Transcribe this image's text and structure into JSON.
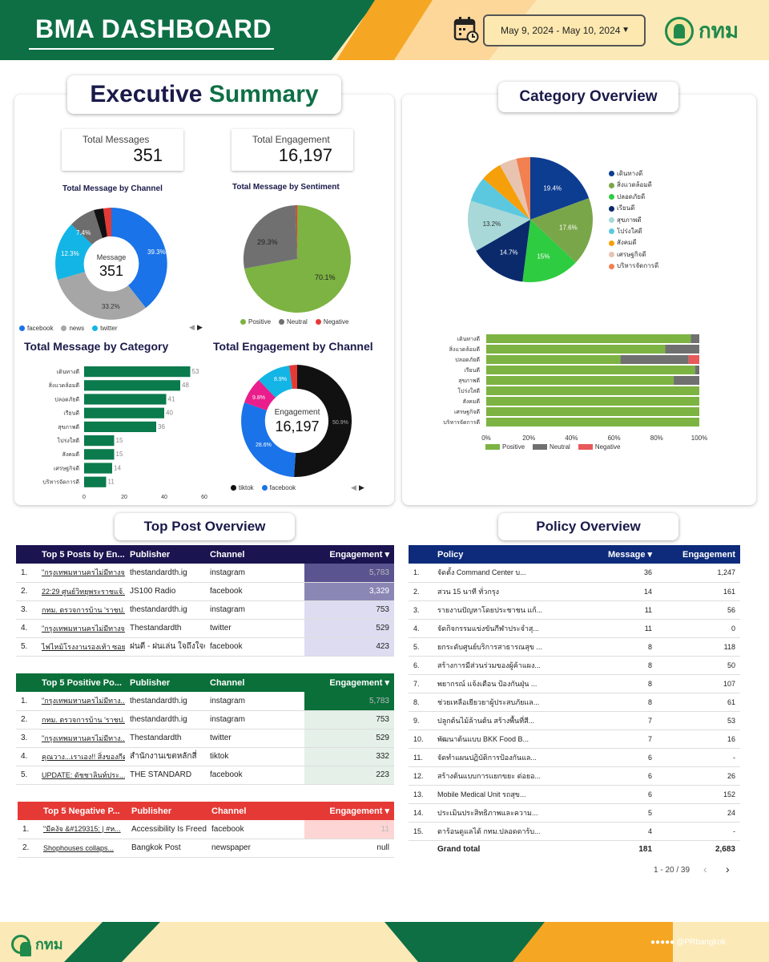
{
  "header": {
    "title": "BMA DASHBOARD",
    "date_range": "May 9, 2024 - May 10, 2024",
    "logo_text": "กทม"
  },
  "exec": {
    "title_a": "Executive",
    "title_b": "Summary",
    "kpi1_label": "Total Messages",
    "kpi1_value": "351",
    "kpi2_label": "Total Engagement",
    "kpi2_value": "16,197",
    "chan_title": "Total Message by Channel",
    "chan_center_label": "Message",
    "chan_center_value": "351",
    "chan_pcts": [
      "39.3%",
      "33.2%",
      "12.3%",
      "7.4%"
    ],
    "chan_legend": [
      "facebook",
      "news",
      "twitter"
    ],
    "sent_title": "Total Message by Sentiment",
    "sent_pcts": [
      "70.1%",
      "29.3%"
    ],
    "sent_legend": [
      "Positive",
      "Neutral",
      "Negative"
    ],
    "cat_title": "Total Message by Category",
    "cat_labels": [
      "เดินทางดี",
      "สิ่งแวดล้อมดี",
      "ปลอดภัยดี",
      "เรียนดี",
      "สุขภาพดี",
      "โปร่งใสดี",
      "สังคมดี",
      "เศรษฐกิจดี",
      "บริหารจัดการดี"
    ],
    "cat_values": [
      53,
      48,
      41,
      40,
      36,
      15,
      15,
      14,
      11
    ],
    "cat_ticks": [
      "0",
      "20",
      "40",
      "60"
    ],
    "eng_title": "Total Engagement by Channel",
    "eng_center_label": "Engagement",
    "eng_center_value": "16,197",
    "eng_pcts": [
      "50.9%",
      "28.6%",
      "9.8%",
      "8.9%"
    ],
    "eng_legend": [
      "tiktok",
      "facebook"
    ]
  },
  "catov": {
    "title": "Category Overview",
    "pie_legend": [
      "เดินทางดี",
      "สิ่งแวดล้อมดี",
      "ปลอดภัยดี",
      "เรียนดี",
      "สุขภาพดี",
      "โปร่งใสดี",
      "สังคมดี",
      "เศรษฐกิจดี",
      "บริหารจัดการดี"
    ],
    "pie_pcts": [
      "19.4%",
      "17.6%",
      "15%",
      "14.7%",
      "13.2%"
    ],
    "bar_labels": [
      "เดินทางดี",
      "สิ่งแวดล้อมดี",
      "ปลอดภัยดี",
      "เรียนดี",
      "สุขภาพดี",
      "โปร่งใสดี",
      "สังคมดี",
      "เศรษฐกิจดี",
      "บริหารจัดการดี"
    ],
    "bar_ticks": [
      "0%",
      "20%",
      "40%",
      "60%",
      "80%",
      "100%"
    ],
    "bar_legend": [
      "Positive",
      "Neutral",
      "Negative"
    ]
  },
  "toppost": {
    "title": "Top Post Overview",
    "t1_headers": [
      "Top 5 Posts by En...",
      "Publisher",
      "Channel",
      "Engagement ▾"
    ],
    "t1_rows": [
      [
        "1.",
        "\"กรุงเทพมหานครไม่มีทางจ...",
        "thestandardth.ig",
        "instagram",
        "5,783"
      ],
      [
        "2.",
        "22:29 ศูนย์วิทยุพระราชแจ้...",
        "JS100 Radio",
        "facebook",
        "3,329"
      ],
      [
        "3.",
        "กทม. ตรวจการบ้าน 'ราชป...",
        "thestandardth.ig",
        "instagram",
        "753"
      ],
      [
        "4.",
        "\"กรุงเทพมหานครไม่มีทางจ...",
        "Thestandardth",
        "twitter",
        "529"
      ],
      [
        "5.",
        "ไฟไหม้โรงงานรองเท้า ซอย...",
        "ฝนตี - ฝนเล่น ใจถึงใจคน...",
        "facebook",
        "423"
      ]
    ],
    "t2_headers": [
      "Top 5 Positive Po...",
      "Publisher",
      "Channel",
      "Engagement ▾"
    ],
    "t2_rows": [
      [
        "1.",
        "\"กรุงเทพมหานครไม่มีทาง...",
        "thestandardth.ig",
        "instagram",
        "5,783"
      ],
      [
        "2.",
        "กทม. ตรวจการบ้าน 'ราชป...",
        "thestandardth.ig",
        "instagram",
        "753"
      ],
      [
        "3.",
        "\"กรุงเทพมหานครไม่มีทาง...",
        "Thestandardth",
        "twitter",
        "529"
      ],
      [
        "4.",
        "คุณวาง...เราเอง!! สิ่งของกีด...",
        "สำนักงานเขตหลักสี่",
        "tiktok",
        "332"
      ],
      [
        "5.",
        "UPDATE: ดัชชาลินท์ประ...",
        "THE STANDARD",
        "facebook",
        "223"
      ]
    ],
    "t3_headers": [
      "Top 5 Negative P...",
      "Publisher",
      "Channel",
      "Engagement ▾"
    ],
    "t3_rows": [
      [
        "1.",
        "\"มีคงัจ &#129315; | #ห...",
        "Accessibility Is Freed...",
        "facebook",
        "11"
      ],
      [
        "2.",
        "Shophouses collaps...",
        "Bangkok Post",
        "newspaper",
        "null"
      ]
    ]
  },
  "policy": {
    "title": "Policy Overview",
    "headers": [
      "Policy",
      "Message ▾",
      "Engagement"
    ],
    "rows": [
      [
        "1.",
        "จัดตั้ง Command Center บ...",
        "36",
        "1,247"
      ],
      [
        "2.",
        "สวน 15 นาที ทั่วกรุง",
        "14",
        "161"
      ],
      [
        "3.",
        "รายงานปัญหาโดยประชาชน แก้...",
        "11",
        "56"
      ],
      [
        "4.",
        "จัดกิจกรรมแข่งขันกีฬาประจำสุ...",
        "11",
        "0"
      ],
      [
        "5.",
        "ยกระดับศูนย์บริการสาธารณสุข ...",
        "8",
        "118"
      ],
      [
        "6.",
        "สร้างการมีส่วนร่วมของผู้ค้าแผง...",
        "8",
        "50"
      ],
      [
        "7.",
        "พยากรณ์ แจ้งเตือน ป้องกันฝุ่น ...",
        "8",
        "107"
      ],
      [
        "8.",
        "ช่วยเหลือเยียวยาผู้ประสบภัยแล...",
        "8",
        "61"
      ],
      [
        "9.",
        "ปลูกต้นไม้ล้านต้น สร้างพื้นที่สี...",
        "7",
        "53"
      ],
      [
        "10.",
        "พัฒนาต้นแบบ BKK Food B...",
        "7",
        "16"
      ],
      [
        "11.",
        "จัดทำแผนปฏิบัติการป้องกันแล...",
        "6",
        "-"
      ],
      [
        "12.",
        "สร้างต้นแบบการแยกขยะ ต่อยอ...",
        "6",
        "26"
      ],
      [
        "13.",
        "Mobile Medical Unit รถสุข...",
        "6",
        "152"
      ],
      [
        "14.",
        "ประเมินประสิทธิภาพและความ...",
        "5",
        "24"
      ],
      [
        "15.",
        "ตาร้อนดูแลได้ กทม.ปลอดดาร้บ...",
        "4",
        "-"
      ]
    ],
    "total_label": "Grand total",
    "total_msg": "181",
    "total_eng": "2,683",
    "pager": "1 - 20 / 39"
  },
  "footer": {
    "handle": "@PRbangkok",
    "logo_text": "กทม"
  }
}
